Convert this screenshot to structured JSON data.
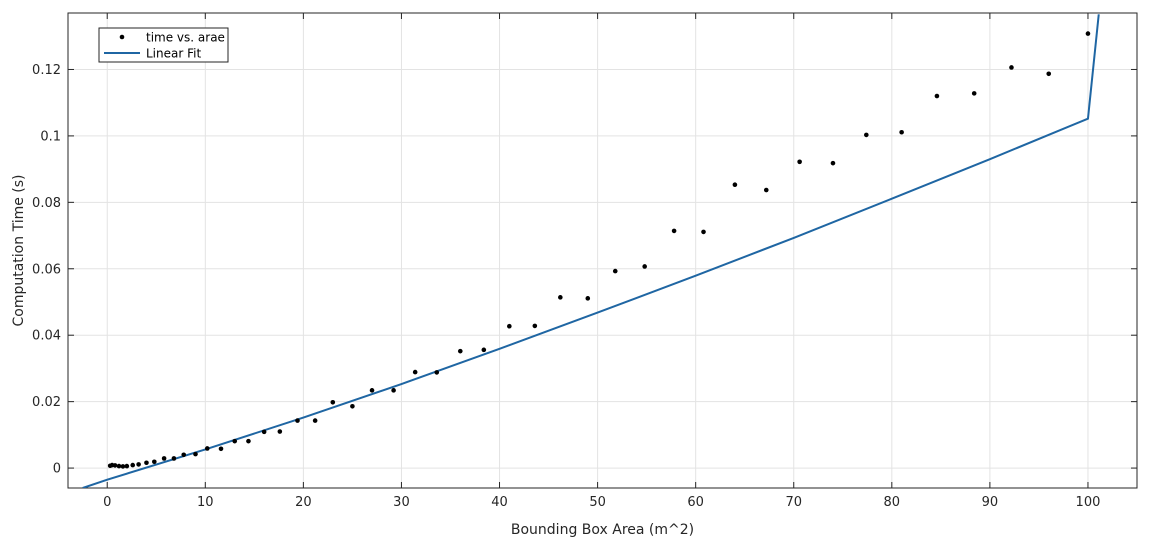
{
  "chart_data": {
    "type": "scatter",
    "xlabel": "Bounding Box Area (m^2)",
    "ylabel": "Computation Time (s)",
    "xlim": [
      -4,
      105
    ],
    "ylim": [
      -0.006,
      0.137
    ],
    "x_ticks": [
      0,
      10,
      20,
      30,
      40,
      50,
      60,
      70,
      80,
      90,
      100
    ],
    "x_tick_labels": [
      "0",
      "10",
      "20",
      "30",
      "40",
      "50",
      "60",
      "70",
      "80",
      "90",
      "100"
    ],
    "y_ticks": [
      0,
      0.02,
      0.04,
      0.06,
      0.08,
      0.1,
      0.12
    ],
    "y_tick_labels": [
      "0",
      "0.02",
      "0.04",
      "0.06",
      "0.08",
      "0.1",
      "0.12"
    ],
    "grid": true,
    "legend_position": "top-left",
    "series": [
      {
        "name": "time vs. arae",
        "kind": "scatter",
        "color": "#000000",
        "x": [
          0.3,
          0.5,
          0.8,
          1.2,
          1.6,
          2.0,
          2.6,
          3.2,
          4.0,
          4.8,
          5.8,
          6.8,
          7.8,
          9.0,
          10.2,
          11.6,
          13.0,
          14.4,
          16.0,
          17.6,
          19.4,
          21.2,
          23.0,
          25.0,
          27.0,
          29.2,
          31.4,
          33.6,
          36.0,
          38.4,
          41.0,
          43.6,
          46.2,
          49.0,
          51.8,
          54.8,
          57.8,
          60.8,
          64.0,
          67.2,
          70.6,
          74.0,
          77.4,
          81.0,
          84.6,
          88.4,
          92.2,
          96.0,
          100.0
        ],
        "y": [
          0.0007,
          0.0009,
          0.0008,
          0.0006,
          0.0005,
          0.0006,
          0.0009,
          0.0011,
          0.0016,
          0.0019,
          0.0029,
          0.0029,
          0.004,
          0.0042,
          0.0059,
          0.0058,
          0.0081,
          0.0081,
          0.0109,
          0.011,
          0.0143,
          0.0143,
          0.0198,
          0.0186,
          0.0234,
          0.0234,
          0.0289,
          0.0288,
          0.0352,
          0.0356,
          0.0427,
          0.0428,
          0.0514,
          0.0511,
          0.0593,
          0.0607,
          0.0714,
          0.0711,
          0.0853,
          0.0837,
          0.0922,
          0.0918,
          0.1003,
          0.1011,
          0.112,
          0.1128,
          0.1206,
          0.1187,
          0.1308
        ]
      },
      {
        "name": "Linear Fit",
        "kind": "line",
        "color": "#1f66a3",
        "x": [
          -2.5,
          0,
          10,
          20,
          30,
          40,
          50,
          60,
          70,
          80,
          90,
          100,
          101.1
        ],
        "y": [
          -0.006,
          -0.0035,
          0.0056,
          0.0152,
          0.0253,
          0.0359,
          0.0468,
          0.0579,
          0.0693,
          0.0811,
          0.093,
          0.1052,
          0.1366
        ]
      }
    ]
  }
}
